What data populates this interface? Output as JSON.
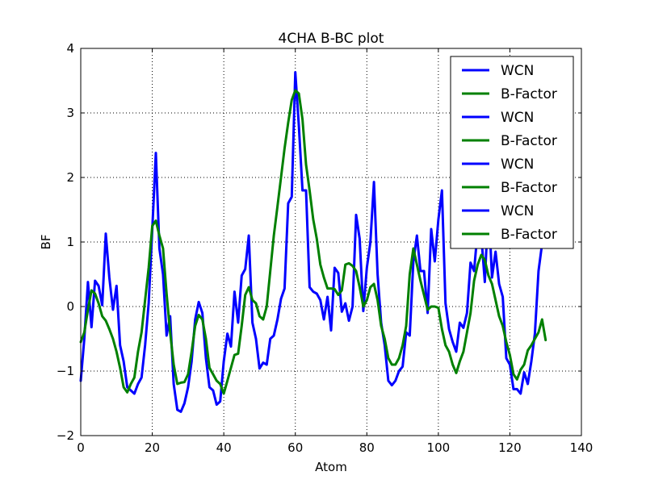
{
  "chart_data": {
    "type": "line",
    "title": "4CHA B-BC plot",
    "xlabel": "Atom",
    "ylabel": "BF",
    "xlim": [
      0,
      140
    ],
    "ylim": [
      -2,
      4
    ],
    "xticks": [
      "0",
      "20",
      "40",
      "60",
      "80",
      "100",
      "120",
      "140"
    ],
    "yticks": [
      "−2",
      "−1",
      "0",
      "1",
      "2",
      "3",
      "4"
    ],
    "grid": true,
    "legend_position": "top-right",
    "legend": [
      "WCN",
      "B-Factor",
      "WCN",
      "B-Factor",
      "WCN",
      "B-Factor",
      "WCN",
      "B-Factor"
    ],
    "colors": {
      "WCN": "#0000ff",
      "B-Factor": "#008000"
    },
    "series": [
      {
        "name": "WCN",
        "color": "#0000ff",
        "points": [
          [
            0,
            -1.15
          ],
          [
            1,
            -0.5
          ],
          [
            2,
            0.38
          ],
          [
            3,
            -0.32
          ],
          [
            4,
            0.4
          ],
          [
            5,
            0.32
          ],
          [
            6,
            0.02
          ],
          [
            7,
            1.13
          ],
          [
            8,
            0.45
          ],
          [
            9,
            -0.05
          ],
          [
            10,
            0.32
          ],
          [
            11,
            -0.6
          ],
          [
            12,
            -0.85
          ],
          [
            13,
            -1.25
          ],
          [
            14,
            -1.3
          ],
          [
            15,
            -1.35
          ],
          [
            16,
            -1.2
          ],
          [
            17,
            -1.1
          ],
          [
            18,
            -0.6
          ],
          [
            19,
            0.05
          ],
          [
            20,
            1.2
          ],
          [
            21,
            2.38
          ],
          [
            22,
            0.9
          ],
          [
            23,
            0.5
          ],
          [
            24,
            -0.45
          ],
          [
            25,
            -0.15
          ],
          [
            26,
            -1.2
          ],
          [
            27,
            -1.6
          ],
          [
            28,
            -1.63
          ],
          [
            29,
            -1.5
          ],
          [
            30,
            -1.25
          ],
          [
            31,
            -0.85
          ],
          [
            32,
            -0.2
          ],
          [
            33,
            0.07
          ],
          [
            34,
            -0.1
          ],
          [
            35,
            -0.8
          ],
          [
            36,
            -1.25
          ],
          [
            37,
            -1.3
          ],
          [
            38,
            -1.52
          ],
          [
            39,
            -1.47
          ],
          [
            40,
            -0.85
          ],
          [
            41,
            -0.42
          ],
          [
            42,
            -0.62
          ],
          [
            43,
            0.23
          ],
          [
            44,
            -0.25
          ],
          [
            45,
            0.48
          ],
          [
            46,
            0.58
          ],
          [
            47,
            1.1
          ],
          [
            48,
            -0.25
          ],
          [
            49,
            -0.5
          ],
          [
            50,
            -0.96
          ],
          [
            51,
            -0.87
          ],
          [
            52,
            -0.9
          ],
          [
            53,
            -0.5
          ],
          [
            54,
            -0.45
          ],
          [
            55,
            -0.2
          ],
          [
            56,
            0.12
          ],
          [
            57,
            0.28
          ],
          [
            58,
            1.6
          ],
          [
            59,
            1.7
          ],
          [
            60,
            3.63
          ],
          [
            61,
            2.8
          ],
          [
            62,
            1.8
          ],
          [
            63,
            1.8
          ],
          [
            64,
            0.3
          ],
          [
            65,
            0.23
          ],
          [
            66,
            0.2
          ],
          [
            67,
            0.1
          ],
          [
            68,
            -0.2
          ],
          [
            69,
            0.15
          ],
          [
            70,
            -0.37
          ],
          [
            71,
            0.6
          ],
          [
            72,
            0.52
          ],
          [
            73,
            -0.08
          ],
          [
            74,
            0.05
          ],
          [
            75,
            -0.22
          ],
          [
            76,
            0.0
          ],
          [
            77,
            1.42
          ],
          [
            78,
            1.05
          ],
          [
            79,
            -0.07
          ],
          [
            80,
            0.6
          ],
          [
            81,
            1.0
          ],
          [
            82,
            1.93
          ],
          [
            83,
            0.5
          ],
          [
            84,
            -0.25
          ],
          [
            85,
            -0.6
          ],
          [
            86,
            -1.15
          ],
          [
            87,
            -1.22
          ],
          [
            88,
            -1.15
          ],
          [
            89,
            -1.0
          ],
          [
            90,
            -0.93
          ],
          [
            91,
            -0.4
          ],
          [
            92,
            -0.45
          ],
          [
            93,
            0.7
          ],
          [
            94,
            1.1
          ],
          [
            95,
            0.55
          ],
          [
            96,
            0.55
          ],
          [
            97,
            -0.1
          ],
          [
            98,
            1.2
          ],
          [
            99,
            0.7
          ],
          [
            100,
            1.35
          ],
          [
            101,
            1.8
          ],
          [
            102,
            0.05
          ],
          [
            103,
            -0.35
          ],
          [
            104,
            -0.55
          ],
          [
            105,
            -0.7
          ],
          [
            106,
            -0.25
          ],
          [
            107,
            -0.33
          ],
          [
            108,
            -0.1
          ],
          [
            109,
            0.68
          ],
          [
            110,
            0.55
          ],
          [
            111,
            1.2
          ],
          [
            112,
            1.1
          ],
          [
            113,
            0.38
          ],
          [
            114,
            1.6
          ],
          [
            115,
            0.45
          ],
          [
            116,
            0.85
          ],
          [
            117,
            0.35
          ],
          [
            118,
            0.15
          ],
          [
            119,
            -0.8
          ],
          [
            120,
            -0.9
          ],
          [
            121,
            -1.28
          ],
          [
            122,
            -1.28
          ],
          [
            123,
            -1.35
          ],
          [
            124,
            -1.02
          ],
          [
            125,
            -1.2
          ],
          [
            126,
            -0.85
          ],
          [
            127,
            -0.42
          ],
          [
            128,
            0.55
          ],
          [
            129,
            0.97
          ]
        ]
      },
      {
        "name": "B-Factor",
        "color": "#008000",
        "points": [
          [
            0,
            -0.55
          ],
          [
            1,
            -0.4
          ],
          [
            2,
            -0.05
          ],
          [
            3,
            0.25
          ],
          [
            4,
            0.2
          ],
          [
            5,
            0.05
          ],
          [
            6,
            -0.15
          ],
          [
            7,
            -0.22
          ],
          [
            8,
            -0.35
          ],
          [
            9,
            -0.5
          ],
          [
            10,
            -0.7
          ],
          [
            11,
            -0.95
          ],
          [
            12,
            -1.25
          ],
          [
            13,
            -1.33
          ],
          [
            14,
            -1.2
          ],
          [
            15,
            -1.1
          ],
          [
            16,
            -0.7
          ],
          [
            17,
            -0.4
          ],
          [
            18,
            0.1
          ],
          [
            19,
            0.6
          ],
          [
            20,
            1.25
          ],
          [
            21,
            1.33
          ],
          [
            22,
            1.1
          ],
          [
            23,
            0.9
          ],
          [
            24,
            0.2
          ],
          [
            25,
            -0.4
          ],
          [
            26,
            -0.9
          ],
          [
            27,
            -1.2
          ],
          [
            28,
            -1.18
          ],
          [
            29,
            -1.17
          ],
          [
            30,
            -1.05
          ],
          [
            31,
            -0.7
          ],
          [
            32,
            -0.3
          ],
          [
            33,
            -0.13
          ],
          [
            34,
            -0.2
          ],
          [
            35,
            -0.5
          ],
          [
            36,
            -0.95
          ],
          [
            37,
            -1.05
          ],
          [
            38,
            -1.15
          ],
          [
            39,
            -1.2
          ],
          [
            40,
            -1.35
          ],
          [
            41,
            -1.15
          ],
          [
            42,
            -0.95
          ],
          [
            43,
            -0.75
          ],
          [
            44,
            -0.73
          ],
          [
            45,
            -0.3
          ],
          [
            46,
            0.18
          ],
          [
            47,
            0.3
          ],
          [
            48,
            0.1
          ],
          [
            49,
            0.05
          ],
          [
            50,
            -0.15
          ],
          [
            51,
            -0.2
          ],
          [
            52,
            0.0
          ],
          [
            53,
            0.55
          ],
          [
            54,
            1.1
          ],
          [
            55,
            1.55
          ],
          [
            56,
            2.0
          ],
          [
            57,
            2.45
          ],
          [
            58,
            2.85
          ],
          [
            59,
            3.2
          ],
          [
            60,
            3.35
          ],
          [
            61,
            3.3
          ],
          [
            62,
            2.9
          ],
          [
            63,
            2.2
          ],
          [
            64,
            1.8
          ],
          [
            65,
            1.35
          ],
          [
            66,
            1.05
          ],
          [
            67,
            0.65
          ],
          [
            68,
            0.45
          ],
          [
            69,
            0.28
          ],
          [
            70,
            0.28
          ],
          [
            71,
            0.27
          ],
          [
            72,
            0.18
          ],
          [
            73,
            0.25
          ],
          [
            74,
            0.65
          ],
          [
            75,
            0.67
          ],
          [
            76,
            0.63
          ],
          [
            77,
            0.55
          ],
          [
            78,
            0.3
          ],
          [
            79,
            0.0
          ],
          [
            80,
            0.1
          ],
          [
            81,
            0.3
          ],
          [
            82,
            0.35
          ],
          [
            83,
            0.1
          ],
          [
            84,
            -0.3
          ],
          [
            85,
            -0.5
          ],
          [
            86,
            -0.8
          ],
          [
            87,
            -0.9
          ],
          [
            88,
            -0.9
          ],
          [
            89,
            -0.8
          ],
          [
            90,
            -0.6
          ],
          [
            91,
            -0.3
          ],
          [
            92,
            0.5
          ],
          [
            93,
            0.9
          ],
          [
            94,
            0.65
          ],
          [
            95,
            0.4
          ],
          [
            96,
            0.18
          ],
          [
            97,
            -0.05
          ],
          [
            98,
            0.0
          ],
          [
            99,
            0.0
          ],
          [
            100,
            -0.02
          ],
          [
            101,
            -0.35
          ],
          [
            102,
            -0.6
          ],
          [
            103,
            -0.7
          ],
          [
            104,
            -0.9
          ],
          [
            105,
            -1.03
          ],
          [
            106,
            -0.85
          ],
          [
            107,
            -0.7
          ],
          [
            108,
            -0.4
          ],
          [
            109,
            -0.1
          ],
          [
            110,
            0.4
          ],
          [
            111,
            0.65
          ],
          [
            112,
            0.8
          ],
          [
            113,
            0.72
          ],
          [
            114,
            0.48
          ],
          [
            115,
            0.35
          ],
          [
            116,
            0.1
          ],
          [
            117,
            -0.15
          ],
          [
            118,
            -0.3
          ],
          [
            119,
            -0.55
          ],
          [
            120,
            -0.75
          ],
          [
            121,
            -1.05
          ],
          [
            122,
            -1.13
          ],
          [
            123,
            -0.98
          ],
          [
            124,
            -0.9
          ],
          [
            125,
            -0.68
          ],
          [
            126,
            -0.6
          ],
          [
            127,
            -0.5
          ],
          [
            128,
            -0.4
          ],
          [
            129,
            -0.2
          ],
          [
            130,
            -0.52
          ]
        ]
      }
    ]
  }
}
